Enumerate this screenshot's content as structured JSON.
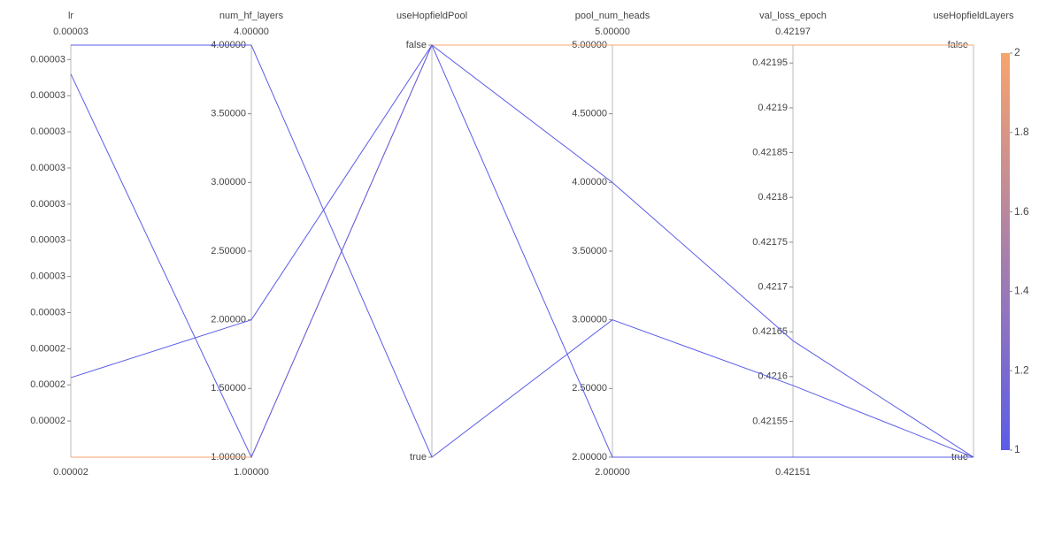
{
  "chart_data": {
    "type": "parallel",
    "dimensions": [
      {
        "label": "lr",
        "ylim": [
          {
            "value": 2.1e-05,
            "label": "0.00002"
          },
          {
            "value": 3.24e-05,
            "label": "0.00003"
          }
        ],
        "yticks": [
          {
            "value": 2.2e-05,
            "label": "0.00002"
          },
          {
            "value": 2.3e-05,
            "label": "0.00002"
          },
          {
            "value": 2.4e-05,
            "label": "0.00002"
          },
          {
            "value": 2.5e-05,
            "label": "0.00003"
          },
          {
            "value": 2.6e-05,
            "label": "0.00003"
          },
          {
            "value": 2.7e-05,
            "label": "0.00003"
          },
          {
            "value": 2.8e-05,
            "label": "0.00003"
          },
          {
            "value": 2.9e-05,
            "label": "0.00003"
          },
          {
            "value": 3e-05,
            "label": "0.00003"
          },
          {
            "value": 3.1e-05,
            "label": "0.00003"
          },
          {
            "value": 3.2e-05,
            "label": "0.00003"
          }
        ]
      },
      {
        "label": "num_hf_layers",
        "ylim": [
          {
            "value": 1,
            "label": "1.00000"
          },
          {
            "value": 4,
            "label": "4.00000"
          }
        ],
        "yticks": [
          {
            "value": 1,
            "label": "1.00000"
          },
          {
            "value": 1.5,
            "label": "1.50000"
          },
          {
            "value": 2,
            "label": "2.00000"
          },
          {
            "value": 2.5,
            "label": "2.50000"
          },
          {
            "value": 3,
            "label": "3.00000"
          },
          {
            "value": 3.5,
            "label": "3.50000"
          },
          {
            "value": 4,
            "label": "4.00000"
          }
        ]
      },
      {
        "label": "useHopfieldPool",
        "categories": [
          "true",
          "false"
        ]
      },
      {
        "label": "pool_num_heads",
        "ylim": [
          {
            "value": 2,
            "label": "2.00000"
          },
          {
            "value": 5,
            "label": "5.00000"
          }
        ],
        "yticks": [
          {
            "value": 2,
            "label": "2.00000"
          },
          {
            "value": 2.5,
            "label": "2.50000"
          },
          {
            "value": 3,
            "label": "3.00000"
          },
          {
            "value": 3.5,
            "label": "3.50000"
          },
          {
            "value": 4,
            "label": "4.00000"
          },
          {
            "value": 4.5,
            "label": "4.50000"
          },
          {
            "value": 5,
            "label": "5.00000"
          }
        ]
      },
      {
        "label": "val_loss_epoch",
        "ylim": [
          {
            "value": 0.42151,
            "label": "0.42151"
          },
          {
            "value": 0.42197,
            "label": "0.42197"
          }
        ],
        "yticks": [
          0.42155,
          0.4216,
          0.42165,
          0.4217,
          0.42175,
          0.4218,
          0.42185,
          0.4219,
          0.42195
        ]
      },
      {
        "label": "useHopfieldLayers",
        "categories": [
          "true",
          "false"
        ]
      }
    ],
    "series": [
      {
        "color_value": 2,
        "values": [
          2.1e-05,
          1,
          "false",
          5,
          0.42197,
          "false"
        ]
      },
      {
        "color_value": 1,
        "values": [
          3.24e-05,
          4,
          "true",
          3,
          0.42159,
          "true"
        ]
      },
      {
        "color_value": 1,
        "values": [
          3.16e-05,
          1,
          "false",
          2,
          0.42151,
          "true"
        ]
      },
      {
        "color_value": 1,
        "values": [
          2.32e-05,
          2,
          "false",
          4,
          0.42164,
          "true"
        ]
      }
    ],
    "colorbar": {
      "lim": [
        1,
        2
      ],
      "ticks": [
        1,
        1.2,
        1.4,
        1.6,
        1.8,
        2
      ],
      "colors": [
        "#5b5ce8",
        "#f8a46c"
      ]
    }
  }
}
